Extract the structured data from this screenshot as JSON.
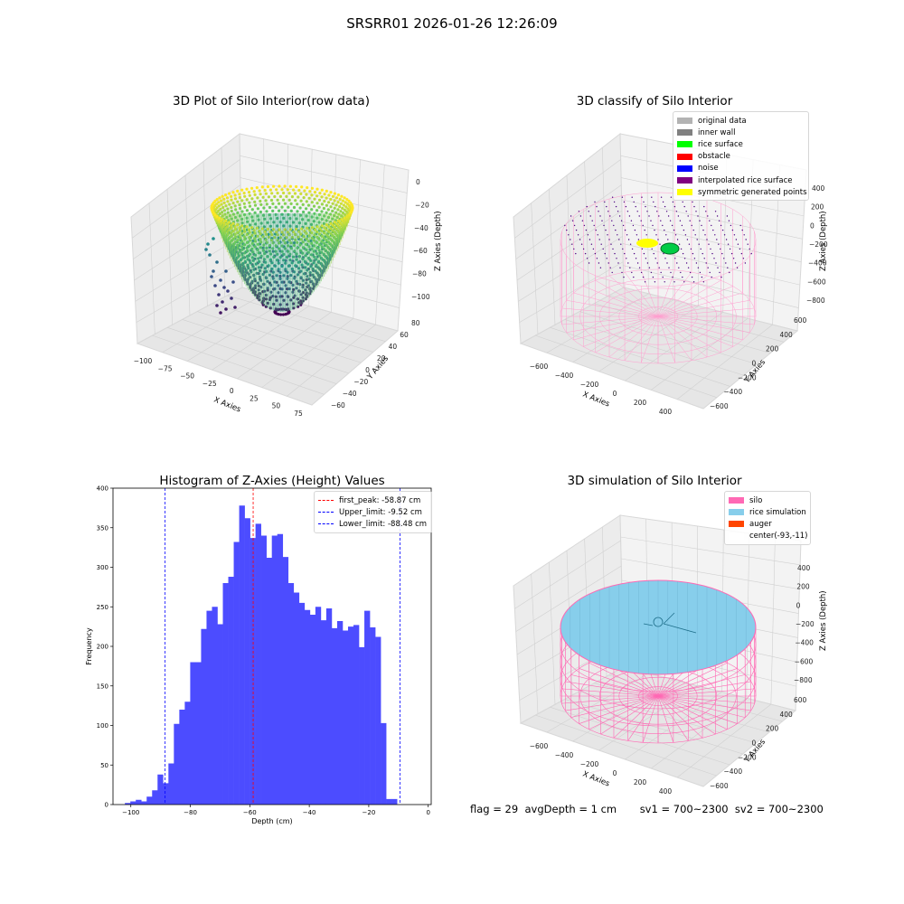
{
  "suptitle": "SRSRR01 2026-01-26 12:26:09",
  "panel_raw": {
    "title": "3D Plot of Silo Interior(row data)",
    "xlabel": "X Axies",
    "ylabel": "Y Axies",
    "zlabel": "Z Axies (Depth)",
    "xticks": [
      "−100",
      "−75",
      "−50",
      "−25",
      "0",
      "25",
      "50",
      "75"
    ],
    "yticks": [
      "−60",
      "−40",
      "−20",
      "0",
      "20",
      "40",
      "60",
      "80"
    ],
    "zticks": [
      "0",
      "−20",
      "−40",
      "−60",
      "−80",
      "−100"
    ]
  },
  "panel_classify": {
    "title": "3D classify of Silo Interior",
    "xlabel": "X Axies",
    "ylabel": "Y Axies",
    "zlabel": "Z Axies (Depth)",
    "xticks": [
      "−600",
      "−400",
      "−200",
      "0",
      "200",
      "400"
    ],
    "yticks": [
      "−600",
      "−400",
      "−200",
      "0",
      "200",
      "400",
      "600"
    ],
    "zticks": [
      "400",
      "200",
      "0",
      "−200",
      "−400",
      "−600",
      "−800"
    ],
    "legend": [
      {
        "label": "original data",
        "color": "#b3b3b3"
      },
      {
        "label": "inner wall",
        "color": "#808080"
      },
      {
        "label": "rice surface",
        "color": "#00ff00"
      },
      {
        "label": "obstacle",
        "color": "#ff0000"
      },
      {
        "label": "noise",
        "color": "#0000ff"
      },
      {
        "label": "interpolated rice surface",
        "color": "#800080"
      },
      {
        "label": "symmetric generated points",
        "color": "#ffff00"
      }
    ]
  },
  "panel_sim": {
    "title": "3D simulation of Silo Interior",
    "xlabel": "X Axies",
    "ylabel": "Y Axies",
    "zlabel": "Z Axies (Depth)",
    "xticks": [
      "−600",
      "−400",
      "−200",
      "0",
      "200",
      "400"
    ],
    "yticks": [
      "−600",
      "−400",
      "−200",
      "0",
      "200",
      "400",
      "600"
    ],
    "zticks": [
      "400",
      "200",
      "0",
      "−200",
      "−400",
      "−600",
      "−800"
    ],
    "legend": [
      {
        "label": "silo",
        "color": "#ff69b4"
      },
      {
        "label": "rice simulation",
        "color": "#87ceeb"
      },
      {
        "label": "auger",
        "color": "#ff4500"
      },
      {
        "label": "center(-93,-11)",
        "color": "#ffffff"
      }
    ]
  },
  "bottom_text": "flag = 29  avgDepth = 1 cm       sv1 = 700~2300  sv2 = 700~2300",
  "chart_data": [
    {
      "type": "bar",
      "title": "Histogram of Z-Axies (Height) Values",
      "xlabel": "Depth (cm)",
      "ylabel": "Frequency",
      "xlim": [
        -106,
        1
      ],
      "ylim": [
        0,
        400
      ],
      "xticks": [
        -100,
        -80,
        -60,
        -40,
        -20,
        0
      ],
      "yticks": [
        0,
        50,
        100,
        150,
        200,
        250,
        300,
        350,
        400
      ],
      "bar_color": "#4c4cff",
      "bin_edges_start": -102,
      "bin_width": 1.83,
      "values": [
        2,
        4,
        6,
        4,
        10,
        18,
        38,
        27,
        52,
        102,
        120,
        130,
        180,
        180,
        222,
        245,
        250,
        228,
        280,
        288,
        332,
        378,
        362,
        337,
        355,
        340,
        312,
        340,
        342,
        313,
        280,
        268,
        255,
        246,
        240,
        250,
        233,
        248,
        223,
        232,
        220,
        225,
        227,
        199,
        245,
        224,
        212,
        103,
        7,
        7
      ],
      "vlines": [
        {
          "label": "first_peak: -58.87 cm",
          "x": -58.87,
          "color": "#ff0000"
        },
        {
          "label": "Upper_limit: -9.52 cm",
          "x": -9.52,
          "color": "#0000ff"
        },
        {
          "label": "Lower_limit: -88.48 cm",
          "x": -88.48,
          "color": "#0000ff"
        }
      ]
    }
  ]
}
